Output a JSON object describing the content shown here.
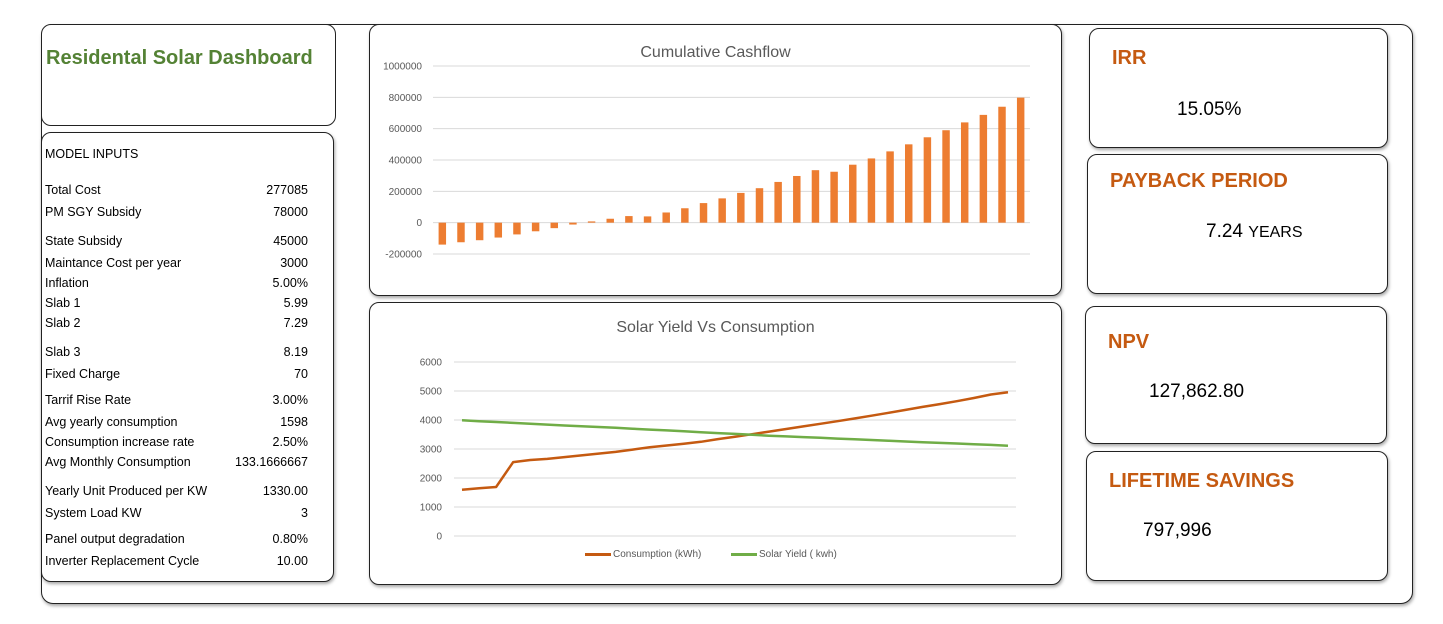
{
  "dashboard": {
    "title": "Residental Solar Dashboard"
  },
  "inputs": {
    "header": "MODEL INPUTS",
    "rows": [
      {
        "label": "Total Cost",
        "value": "277085"
      },
      {
        "label": "PM SGY Subsidy",
        "value": "78000"
      },
      {
        "label": "State Subsidy",
        "value": "45000"
      },
      {
        "label": "Maintance Cost per year",
        "value": "3000"
      },
      {
        "label": "Inflation",
        "value": "5.00%"
      },
      {
        "label": "Slab 1",
        "value": "5.99"
      },
      {
        "label": "Slab 2",
        "value": "7.29"
      },
      {
        "label": "Slab 3",
        "value": "8.19"
      },
      {
        "label": "Fixed Charge",
        "value": "70"
      },
      {
        "label": "Tarrif Rise Rate",
        "value": "3.00%"
      },
      {
        "label": "Avg yearly consumption",
        "value": "1598"
      },
      {
        "label": "Consumption increase rate",
        "value": "2.50%"
      },
      {
        "label": "Avg Monthly Consumption",
        "value": "133.1666667"
      },
      {
        "label": "Yearly Unit Produced per KW",
        "value": "1330.00"
      },
      {
        "label": "System  Load KW",
        "value": "3"
      },
      {
        "label": "Panel output degradation",
        "value": "0.80%"
      },
      {
        "label": "Inverter Replacement Cycle",
        "value": "10.00"
      }
    ]
  },
  "kpis": {
    "irr": {
      "title": "IRR",
      "value": "15.05%"
    },
    "payback": {
      "title": "PAYBACK PERIOD",
      "value": "7.24",
      "unit": "YEARS"
    },
    "npv": {
      "title": "NPV",
      "value": "127,862.80"
    },
    "lifetime": {
      "title": "LIFETIME SAVINGS",
      "value": "797,996"
    }
  },
  "colors": {
    "bar": "#ED7D31",
    "consumption": "#C55A11",
    "solar": "#70AD47",
    "title_green": "#548235",
    "kpi_orange": "#C55A11"
  },
  "chart_data": [
    {
      "type": "bar",
      "title": "Cumulative Cashflow",
      "ylim": [
        -200000,
        1000000
      ],
      "yticks": [
        -200000,
        0,
        200000,
        400000,
        600000,
        800000,
        1000000
      ],
      "grid": true,
      "values": [
        -140000,
        -125000,
        -112000,
        -95000,
        -75000,
        -55000,
        -35000,
        -12000,
        8000,
        25000,
        42000,
        40000,
        65000,
        92000,
        125000,
        155000,
        190000,
        220000,
        260000,
        298000,
        335000,
        325000,
        370000,
        410000,
        455000,
        500000,
        545000,
        590000,
        640000,
        688000,
        740000,
        798000
      ]
    },
    {
      "type": "line",
      "title": "Solar Yield Vs Consumption",
      "ylim": [
        0,
        6000
      ],
      "yticks": [
        0,
        1000,
        2000,
        3000,
        4000,
        5000,
        6000
      ],
      "grid": true,
      "legend_position": "bottom",
      "series": [
        {
          "name": "Consumption (kWh)",
          "color": "#C55A11",
          "values": [
            1598,
            1650,
            1690,
            2550,
            2620,
            2660,
            2720,
            2780,
            2840,
            2900,
            2980,
            3060,
            3120,
            3180,
            3250,
            3340,
            3420,
            3510,
            3600,
            3690,
            3780,
            3870,
            3960,
            4050,
            4150,
            4250,
            4350,
            4450,
            4550,
            4650,
            4760,
            4880,
            4960
          ]
        },
        {
          "name": "Solar Yield ( kwh)",
          "color": "#70AD47",
          "values": [
            3990,
            3960,
            3930,
            3900,
            3870,
            3840,
            3810,
            3785,
            3760,
            3730,
            3700,
            3670,
            3640,
            3610,
            3580,
            3550,
            3520,
            3490,
            3460,
            3435,
            3410,
            3385,
            3360,
            3335,
            3310,
            3285,
            3260,
            3235,
            3210,
            3190,
            3165,
            3140,
            3115
          ]
        }
      ]
    }
  ]
}
